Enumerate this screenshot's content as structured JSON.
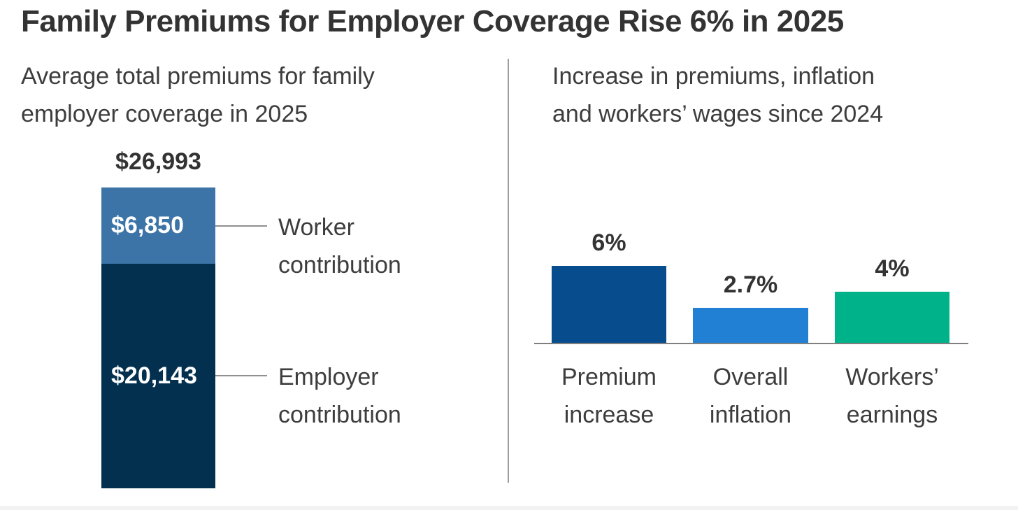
{
  "title": "Family Premiums for Employer Coverage Rise 6% in 2025",
  "colors": {
    "title_text": "#333333",
    "body_text": "#3d3d3d",
    "worker_segment": "#3d74a7",
    "employer_segment": "#03304f",
    "premium_bar": "#074d8d",
    "inflation_bar": "#2180d4",
    "earnings_bar": "#00b289",
    "leader_line": "#909090",
    "axis_line": "#7f7f7f",
    "divider": "#9e9e9e"
  },
  "left_chart": {
    "subtitle_line1": "Average total premiums for family",
    "subtitle_line2": "employer coverage in 2025",
    "total_label": "$26,993",
    "worker_value": "$6,850",
    "worker_label_line1": "Worker",
    "worker_label_line2": "contribution",
    "employer_value": "$20,143",
    "employer_label_line1": "Employer",
    "employer_label_line2": "contribution"
  },
  "right_chart": {
    "subtitle_line1": "Increase in premiums, inflation",
    "subtitle_line2": "and workers’ wages since 2024",
    "bars": [
      {
        "value_label": "6%",
        "label_line1": "Premium",
        "label_line2": "increase"
      },
      {
        "value_label": "2.7%",
        "label_line1": "Overall",
        "label_line2": "inflation"
      },
      {
        "value_label": "4%",
        "label_line1": "Workers’",
        "label_line2": "earnings"
      }
    ]
  },
  "chart_data": [
    {
      "type": "bar",
      "variant": "single-stacked-column",
      "title": "Average total premiums for family employer coverage in 2025",
      "unit": "USD",
      "total": 26993,
      "total_label": "$26,993",
      "segments": [
        {
          "name": "Worker contribution",
          "value": 6850,
          "label": "$6,850",
          "color": "#3d74a7"
        },
        {
          "name": "Employer contribution",
          "value": 20143,
          "label": "$20,143",
          "color": "#03304f"
        }
      ],
      "legend": false,
      "grid": false
    },
    {
      "type": "bar",
      "title": "Increase in premiums, inflation and workers’ wages since 2024",
      "unit": "percent",
      "categories": [
        "Premium increase",
        "Overall inflation",
        "Workers’ earnings"
      ],
      "values": [
        6,
        2.7,
        4
      ],
      "value_labels": [
        "6%",
        "2.7%",
        "4%"
      ],
      "colors": [
        "#074d8d",
        "#2180d4",
        "#00b289"
      ],
      "ylim": [
        0,
        6.6
      ],
      "legend": false,
      "grid": false,
      "baseline": true
    }
  ]
}
